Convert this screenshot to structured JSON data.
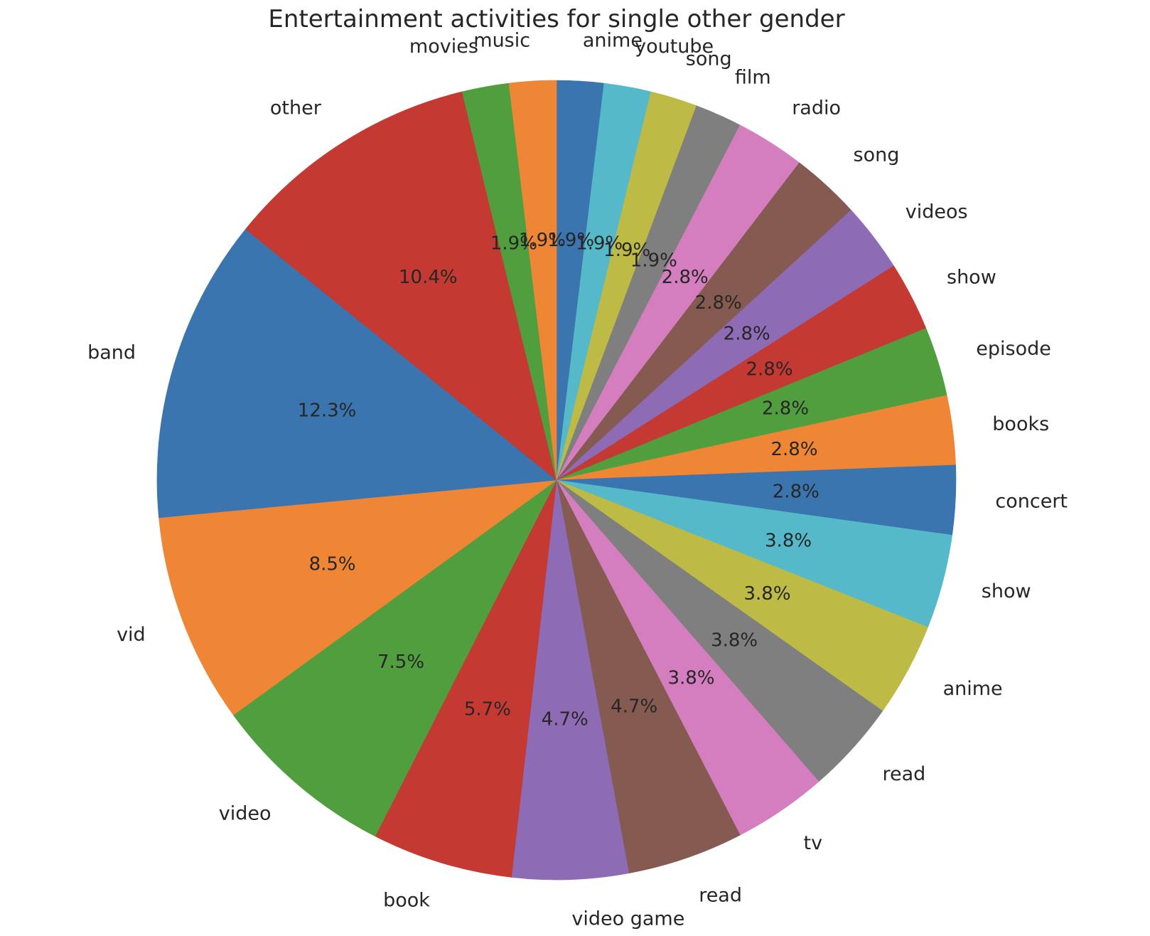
{
  "chart_data": {
    "type": "pie",
    "title": "Entertainment activities for single other gender",
    "start_angle_deg": 90,
    "direction": "clockwise",
    "slices": [
      {
        "label": "anime",
        "value": 1.9,
        "pct": "1.9%",
        "color": "#3a75af"
      },
      {
        "label": "youtube",
        "value": 1.9,
        "pct": "1.9%",
        "color": "#56b9c9"
      },
      {
        "label": "song",
        "value": 1.9,
        "pct": "1.9%",
        "color": "#bdbb45"
      },
      {
        "label": "film",
        "value": 1.9,
        "pct": "1.9%",
        "color": "#7f7f7f"
      },
      {
        "label": "radio",
        "value": 2.8,
        "pct": "2.8%",
        "color": "#d57ebf"
      },
      {
        "label": "song",
        "value": 2.8,
        "pct": "2.8%",
        "color": "#855a50"
      },
      {
        "label": "videos",
        "value": 2.8,
        "pct": "2.8%",
        "color": "#8e6bb5"
      },
      {
        "label": "show",
        "value": 2.8,
        "pct": "2.8%",
        "color": "#c43932"
      },
      {
        "label": "episode",
        "value": 2.8,
        "pct": "2.8%",
        "color": "#519e3e"
      },
      {
        "label": "books",
        "value": 2.8,
        "pct": "2.8%",
        "color": "#ef8636"
      },
      {
        "label": "concert",
        "value": 2.8,
        "pct": "2.8%",
        "color": "#3a75af"
      },
      {
        "label": "show",
        "value": 3.8,
        "pct": "3.8%",
        "color": "#56b9c9"
      },
      {
        "label": "anime",
        "value": 3.8,
        "pct": "3.8%",
        "color": "#bdbb45"
      },
      {
        "label": "read",
        "value": 3.8,
        "pct": "3.8%",
        "color": "#7f7f7f"
      },
      {
        "label": "tv",
        "value": 3.8,
        "pct": "3.8%",
        "color": "#d57ebf"
      },
      {
        "label": "read",
        "value": 4.7,
        "pct": "4.7%",
        "color": "#855a50"
      },
      {
        "label": "video game",
        "value": 4.7,
        "pct": "4.7%",
        "color": "#8e6bb5"
      },
      {
        "label": "book",
        "value": 5.7,
        "pct": "5.7%",
        "color": "#c43932"
      },
      {
        "label": "video",
        "value": 7.5,
        "pct": "7.5%",
        "color": "#519e3e"
      },
      {
        "label": "vid",
        "value": 8.5,
        "pct": "8.5%",
        "color": "#ef8636"
      },
      {
        "label": "band",
        "value": 12.3,
        "pct": "12.3%",
        "color": "#3a75af"
      },
      {
        "label": "other",
        "value": 10.4,
        "pct": "10.4%",
        "color": "#c43932"
      },
      {
        "label": "movies",
        "value": 1.9,
        "pct": "1.9%",
        "color": "#519e3e"
      },
      {
        "label": "music",
        "value": 1.9,
        "pct": "1.9%",
        "color": "#ef8636"
      }
    ]
  }
}
